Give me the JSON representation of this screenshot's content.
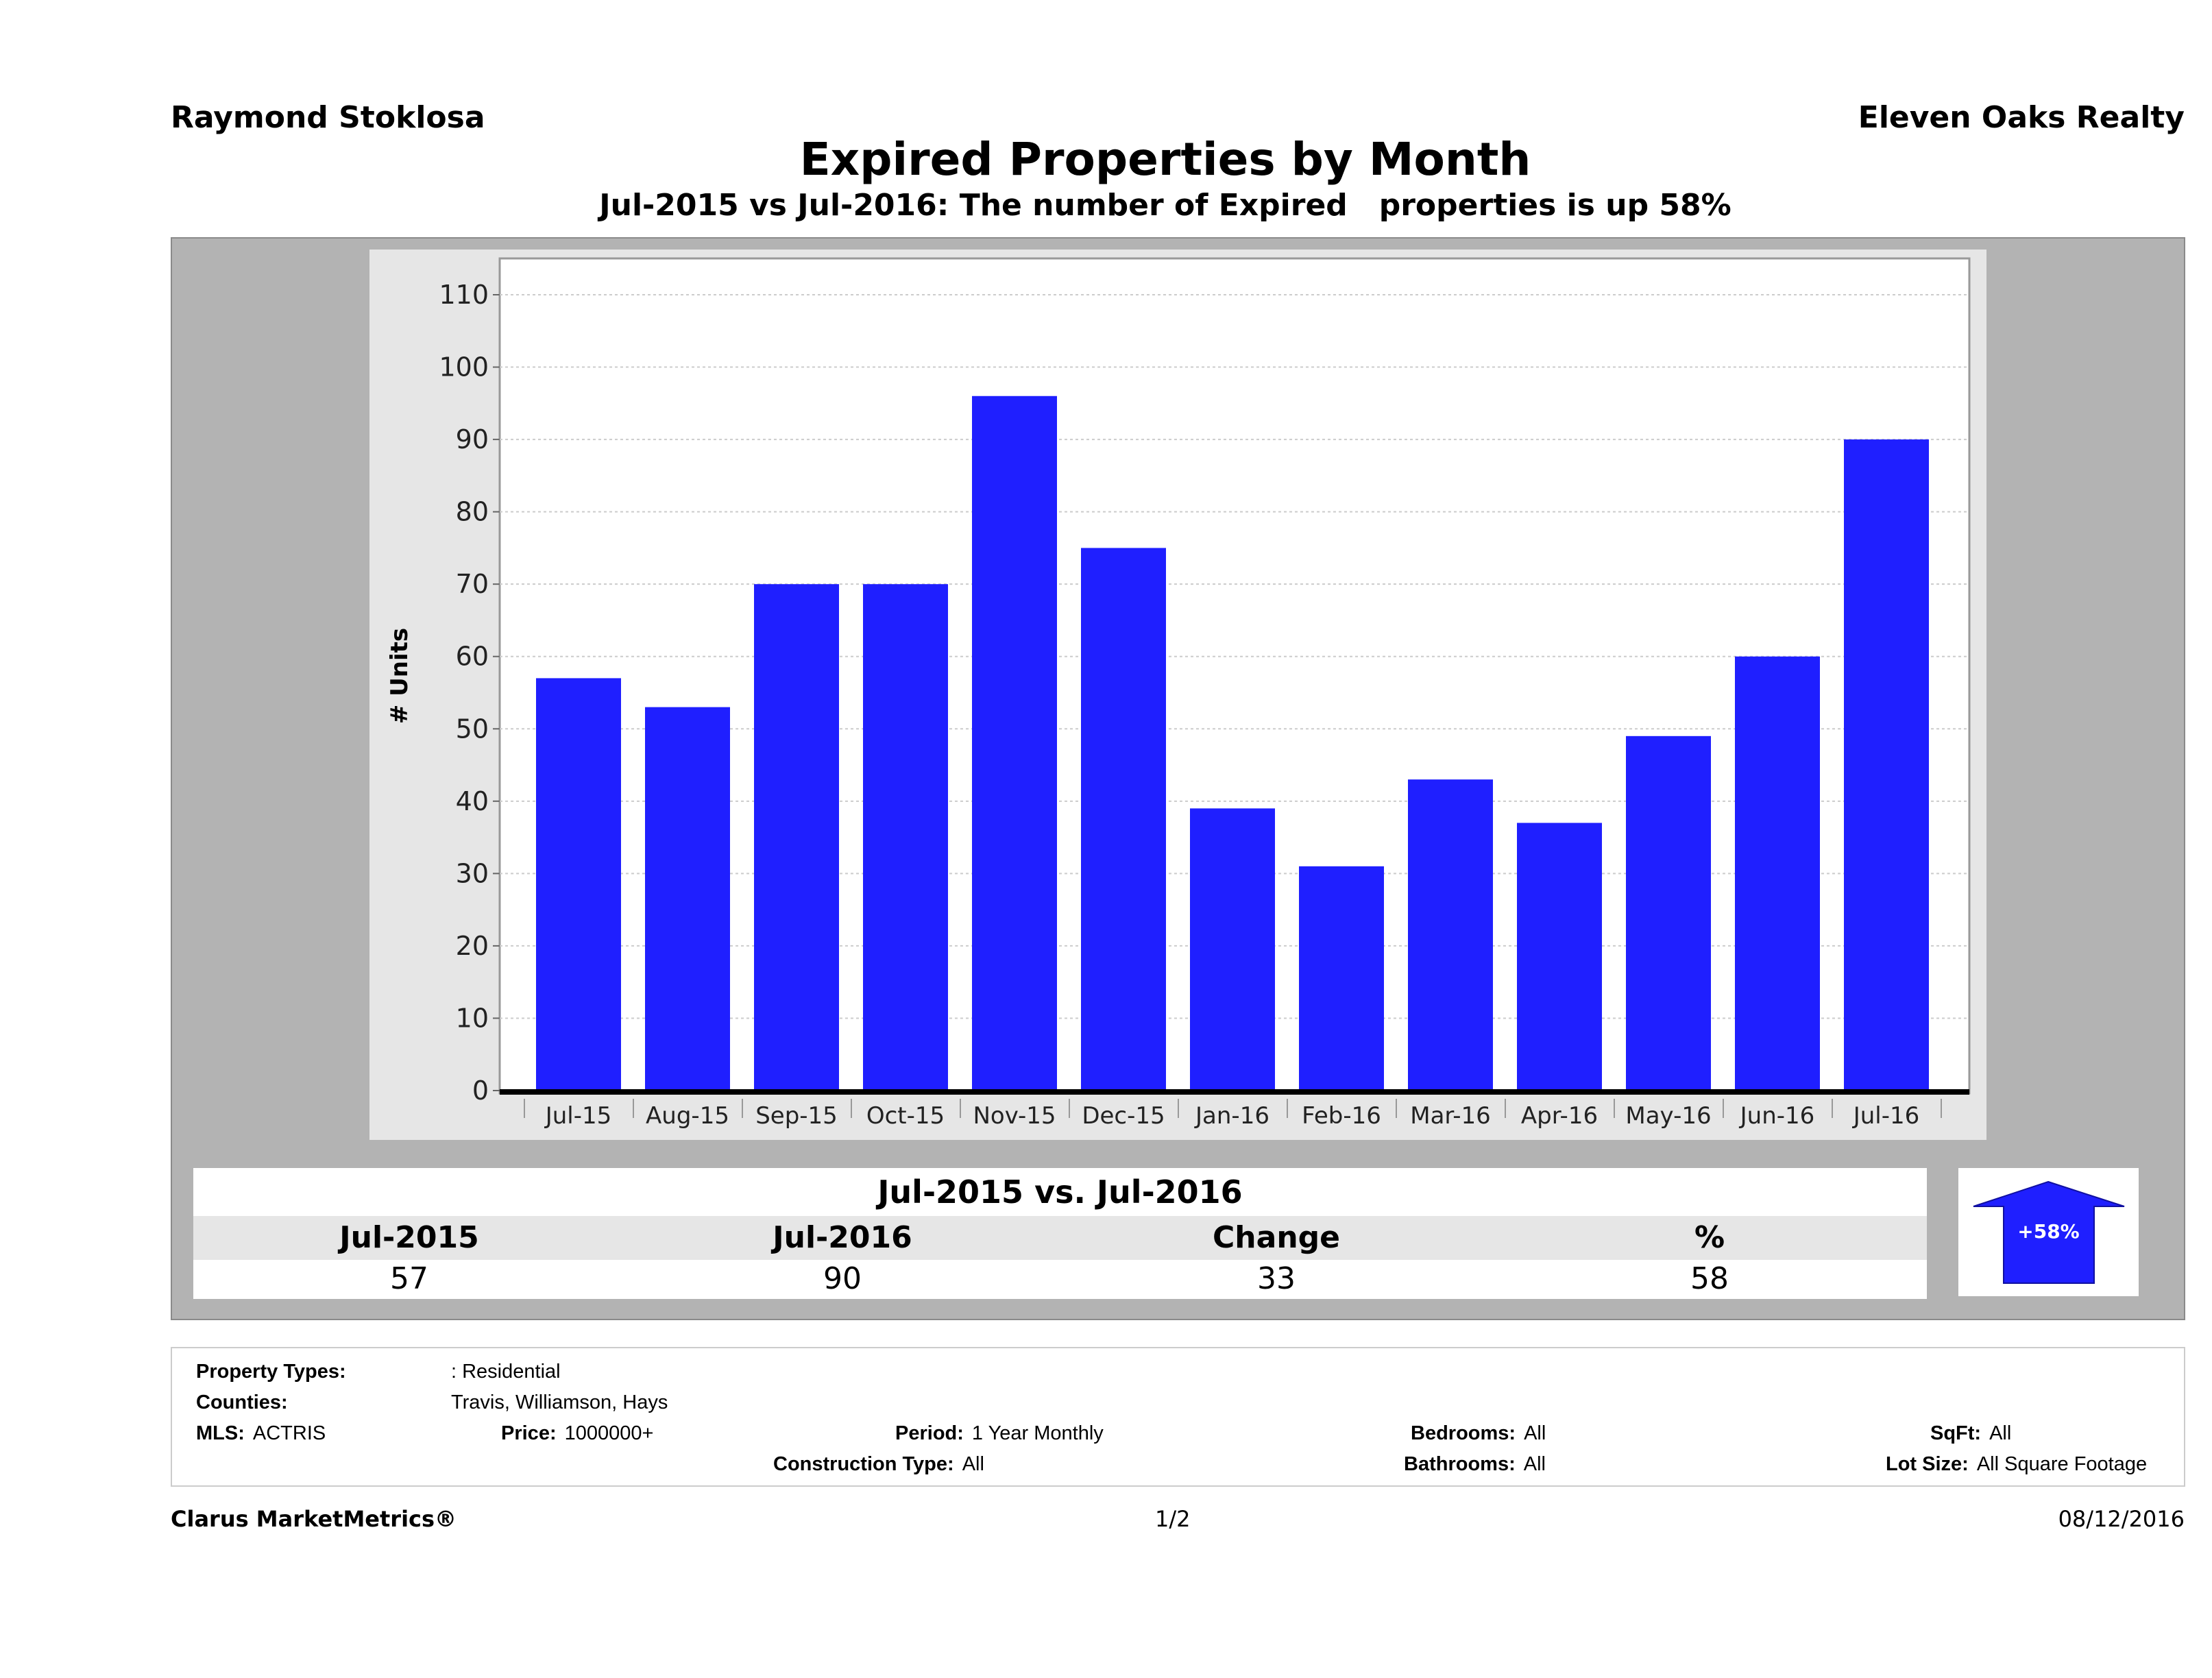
{
  "header": {
    "agent": "Raymond Stoklosa",
    "brokerage": "Eleven Oaks Realty",
    "title": "Expired Properties by Month",
    "subtitle": "Jul-2015 vs Jul-2016: The number of Expired   properties is up 58%"
  },
  "chart_data": {
    "type": "bar",
    "categories": [
      "Jul-15",
      "Aug-15",
      "Sep-15",
      "Oct-15",
      "Nov-15",
      "Dec-15",
      "Jan-16",
      "Feb-16",
      "Mar-16",
      "Apr-16",
      "May-16",
      "Jun-16",
      "Jul-16"
    ],
    "values": [
      57,
      53,
      70,
      70,
      96,
      75,
      39,
      31,
      43,
      37,
      49,
      60,
      90
    ],
    "ylabel": "# Units",
    "ylim": [
      0,
      110
    ],
    "yticks": [
      0,
      10,
      20,
      30,
      40,
      50,
      60,
      70,
      80,
      90,
      100,
      110
    ],
    "grid": true,
    "color": "#1f1fff"
  },
  "summary": {
    "title": "Jul-2015 vs. Jul-2016",
    "headers": [
      "Jul-2015",
      "Jul-2016",
      "Change",
      "%"
    ],
    "values": [
      "57",
      "90",
      "33",
      "58"
    ],
    "badge": "+58%",
    "badge_direction": "up",
    "badge_color": "#1f1fff"
  },
  "info": {
    "property_types_label": "Property Types:",
    "property_types": ": Residential",
    "counties_label": "Counties:",
    "counties": "Travis, Williamson, Hays",
    "mls_label": "MLS:",
    "mls": "ACTRIS",
    "price_label": "Price:",
    "price": "1000000+",
    "period_label": "Period:",
    "period": "1 Year Monthly",
    "construction_label": "Construction Type:",
    "construction": "All",
    "bedrooms_label": "Bedrooms:",
    "bedrooms": "All",
    "bathrooms_label": "Bathrooms:",
    "bathrooms": "All",
    "sqft_label": "SqFt:",
    "sqft": "All",
    "lot_label": "Lot Size:",
    "lot": "All Square Footage"
  },
  "footer": {
    "brand": "Clarus MarketMetrics®",
    "page": "1/2",
    "date": "08/12/2016"
  }
}
